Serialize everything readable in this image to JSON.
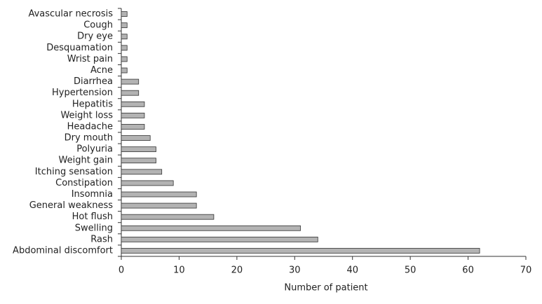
{
  "chart_data": {
    "type": "barh",
    "categories": [
      "Avascular necrosis",
      "Cough",
      "Dry eye",
      "Desquamation",
      "Wrist pain",
      "Acne",
      "Diarrhea",
      "Hypertension",
      "Hepatitis",
      "Weight loss",
      "Headache",
      "Dry mouth",
      "Polyuria",
      "Weight gain",
      "Itching sensation",
      "Constipation",
      "Insomnia",
      "General weakness",
      "Hot flush",
      "Swelling",
      "Rash",
      "Abdominal discomfort"
    ],
    "values": [
      1,
      1,
      1,
      1,
      1,
      1,
      3,
      3,
      4,
      4,
      4,
      5,
      6,
      6,
      7,
      9,
      13,
      13,
      16,
      31,
      34,
      62
    ],
    "color": "#b3b3b3",
    "xlabel": "Number of patient",
    "xlim": [
      0,
      70
    ],
    "xticks": [
      0,
      10,
      20,
      30,
      40,
      50,
      60,
      70
    ],
    "grid": false
  }
}
